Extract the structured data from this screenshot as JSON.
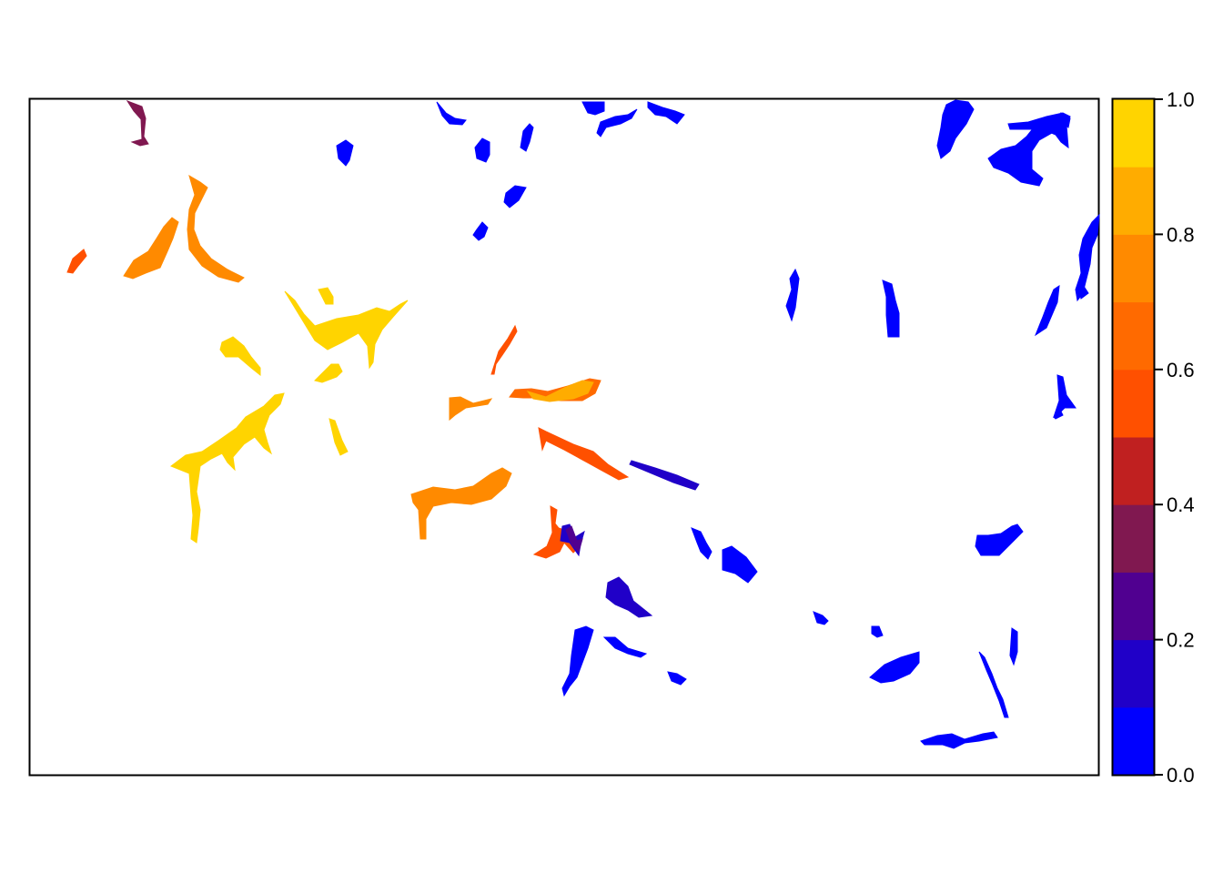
{
  "raster_map": {
    "axes_visible": false,
    "legend": {
      "type": "continuous",
      "position": "right",
      "tick_labels": [
        "0.0",
        "0.2",
        "0.4",
        "0.6",
        "0.8",
        "1.0"
      ],
      "breaks": [
        0.0,
        0.1,
        0.2,
        0.3,
        0.4,
        0.5,
        0.6,
        0.7,
        0.8,
        0.9,
        1.0
      ],
      "colors": [
        "#0000ff",
        "#2000c8",
        "#500090",
        "#801850",
        "#c02020",
        "#ff5000",
        "#ff6a00",
        "#ff8a00",
        "#ffac00",
        "#ffd400"
      ]
    },
    "patch_groups": [
      {
        "value": 0.35,
        "count": 1
      },
      {
        "value": 0.55,
        "count": 4
      },
      {
        "value": 0.65,
        "count": 1
      },
      {
        "value": 0.75,
        "count": 4
      },
      {
        "value": 0.85,
        "count": 1
      },
      {
        "value": 0.95,
        "count": 6
      },
      {
        "value": 0.15,
        "count": 3
      },
      {
        "value": 0.25,
        "count": 1
      },
      {
        "value": 0.05,
        "count": 32
      }
    ]
  }
}
